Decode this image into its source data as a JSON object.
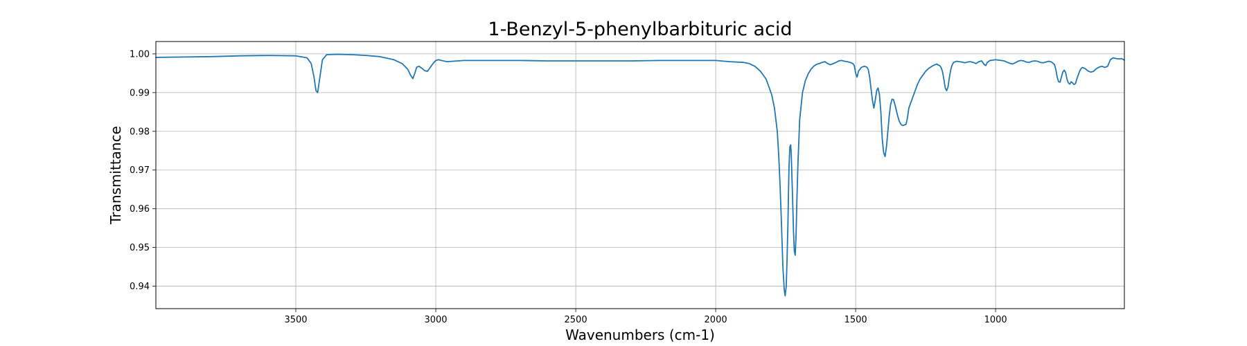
{
  "chart_data": {
    "type": "line",
    "title": "1-Benzyl-5-phenylbarbituric acid",
    "xlabel": "Wavenumbers (cm-1)",
    "ylabel": "Transmittance",
    "xlim": [
      4000,
      540
    ],
    "ylim": [
      0.9342,
      1.0032
    ],
    "x_reversed": true,
    "grid": true,
    "x_ticks": [
      3500,
      3000,
      2500,
      2000,
      1500,
      1000
    ],
    "y_ticks": [
      0.94,
      0.95,
      0.96,
      0.97,
      0.98,
      0.99,
      1.0
    ],
    "y_tick_labels": [
      "0.94",
      "0.95",
      "0.96",
      "0.97",
      "0.98",
      "0.99",
      "1.00"
    ],
    "series": [
      {
        "color": "#1f77b4",
        "x": [
          4000,
          3900,
          3800,
          3700,
          3600,
          3500,
          3460,
          3445,
          3435,
          3428,
          3422,
          3415,
          3405,
          3390,
          3350,
          3300,
          3250,
          3200,
          3150,
          3120,
          3100,
          3090,
          3082,
          3075,
          3068,
          3060,
          3050,
          3040,
          3030,
          3020,
          3010,
          3000,
          2990,
          2980,
          2960,
          2900,
          2800,
          2700,
          2600,
          2500,
          2400,
          2300,
          2200,
          2100,
          2000,
          1950,
          1900,
          1880,
          1860,
          1840,
          1820,
          1800,
          1790,
          1780,
          1775,
          1770,
          1765,
          1760,
          1755,
          1752,
          1748,
          1745,
          1742,
          1740,
          1738,
          1735,
          1732,
          1730,
          1728,
          1725,
          1722,
          1719,
          1716,
          1713,
          1710,
          1706,
          1700,
          1690,
          1680,
          1670,
          1660,
          1650,
          1640,
          1630,
          1620,
          1610,
          1600,
          1590,
          1580,
          1570,
          1560,
          1550,
          1540,
          1530,
          1520,
          1510,
          1505,
          1500,
          1495,
          1490,
          1480,
          1470,
          1460,
          1455,
          1450,
          1445,
          1440,
          1435,
          1430,
          1425,
          1420,
          1415,
          1410,
          1405,
          1400,
          1395,
          1390,
          1385,
          1380,
          1375,
          1370,
          1365,
          1360,
          1355,
          1350,
          1345,
          1340,
          1335,
          1330,
          1325,
          1320,
          1315,
          1310,
          1300,
          1290,
          1280,
          1270,
          1260,
          1250,
          1240,
          1230,
          1220,
          1210,
          1205,
          1200,
          1195,
          1190,
          1185,
          1180,
          1175,
          1170,
          1165,
          1160,
          1155,
          1150,
          1140,
          1130,
          1120,
          1110,
          1100,
          1090,
          1080,
          1070,
          1060,
          1050,
          1040,
          1035,
          1030,
          1020,
          1010,
          1000,
          990,
          980,
          970,
          960,
          950,
          940,
          930,
          920,
          910,
          900,
          890,
          880,
          870,
          860,
          850,
          840,
          830,
          820,
          810,
          800,
          790,
          785,
          780,
          775,
          770,
          765,
          760,
          755,
          750,
          745,
          740,
          735,
          730,
          725,
          720,
          715,
          710,
          705,
          700,
          695,
          690,
          680,
          670,
          660,
          650,
          640,
          630,
          620,
          610,
          600,
          590,
          580,
          570,
          560,
          550,
          540
        ],
        "y": [
          0.9991,
          0.9992,
          0.9993,
          0.9995,
          0.9996,
          0.9995,
          0.999,
          0.9975,
          0.994,
          0.9905,
          0.99,
          0.9935,
          0.9985,
          0.9998,
          0.9999,
          0.9998,
          0.9996,
          0.9993,
          0.9985,
          0.9975,
          0.996,
          0.9945,
          0.9936,
          0.995,
          0.9966,
          0.9968,
          0.9963,
          0.9957,
          0.9955,
          0.9965,
          0.9975,
          0.9983,
          0.9985,
          0.9983,
          0.998,
          0.9983,
          0.9983,
          0.9983,
          0.9982,
          0.9982,
          0.9982,
          0.9982,
          0.9983,
          0.9983,
          0.9983,
          0.998,
          0.9978,
          0.9975,
          0.9968,
          0.9955,
          0.9935,
          0.9895,
          0.986,
          0.98,
          0.974,
          0.966,
          0.956,
          0.945,
          0.939,
          0.9375,
          0.94,
          0.947,
          0.956,
          0.964,
          0.971,
          0.976,
          0.9765,
          0.974,
          0.969,
          0.962,
          0.954,
          0.949,
          0.948,
          0.953,
          0.962,
          0.972,
          0.983,
          0.99,
          0.993,
          0.9948,
          0.996,
          0.9968,
          0.9973,
          0.9975,
          0.9978,
          0.998,
          0.9975,
          0.9972,
          0.9975,
          0.9978,
          0.9982,
          0.9983,
          0.9981,
          0.998,
          0.9978,
          0.9975,
          0.997,
          0.995,
          0.994,
          0.9955,
          0.9965,
          0.9968,
          0.9966,
          0.996,
          0.994,
          0.991,
          0.988,
          0.986,
          0.988,
          0.9905,
          0.9912,
          0.9895,
          0.985,
          0.978,
          0.9745,
          0.9735,
          0.976,
          0.98,
          0.984,
          0.987,
          0.9883,
          0.9882,
          0.987,
          0.9855,
          0.984,
          0.9828,
          0.982,
          0.9816,
          0.9815,
          0.9817,
          0.9818,
          0.9835,
          0.986,
          0.988,
          0.99,
          0.992,
          0.9935,
          0.9945,
          0.9955,
          0.9962,
          0.9967,
          0.9971,
          0.9974,
          0.9971,
          0.997,
          0.9965,
          0.9955,
          0.9935,
          0.9912,
          0.9905,
          0.9915,
          0.994,
          0.996,
          0.9972,
          0.9978,
          0.9981,
          0.998,
          0.9979,
          0.9977,
          0.9979,
          0.998,
          0.9978,
          0.9975,
          0.998,
          0.9982,
          0.9972,
          0.997,
          0.9978,
          0.9983,
          0.9984,
          0.9985,
          0.9984,
          0.9983,
          0.9982,
          0.9979,
          0.9976,
          0.9974,
          0.9977,
          0.9981,
          0.9983,
          0.9982,
          0.9979,
          0.9978,
          0.9981,
          0.9982,
          0.9981,
          0.9978,
          0.9977,
          0.9979,
          0.9981,
          0.9979,
          0.9973,
          0.996,
          0.994,
          0.9928,
          0.9927,
          0.994,
          0.9953,
          0.9958,
          0.9952,
          0.9935,
          0.9925,
          0.9922,
          0.9928,
          0.9925,
          0.9921,
          0.9923,
          0.9935,
          0.9945,
          0.9955,
          0.9962,
          0.9965,
          0.9962,
          0.9956,
          0.9953,
          0.9955,
          0.9962,
          0.9966,
          0.9968,
          0.9965,
          0.9968,
          0.9985,
          0.999,
          0.9988,
          0.9987,
          0.9988,
          0.9984
        ]
      }
    ]
  }
}
